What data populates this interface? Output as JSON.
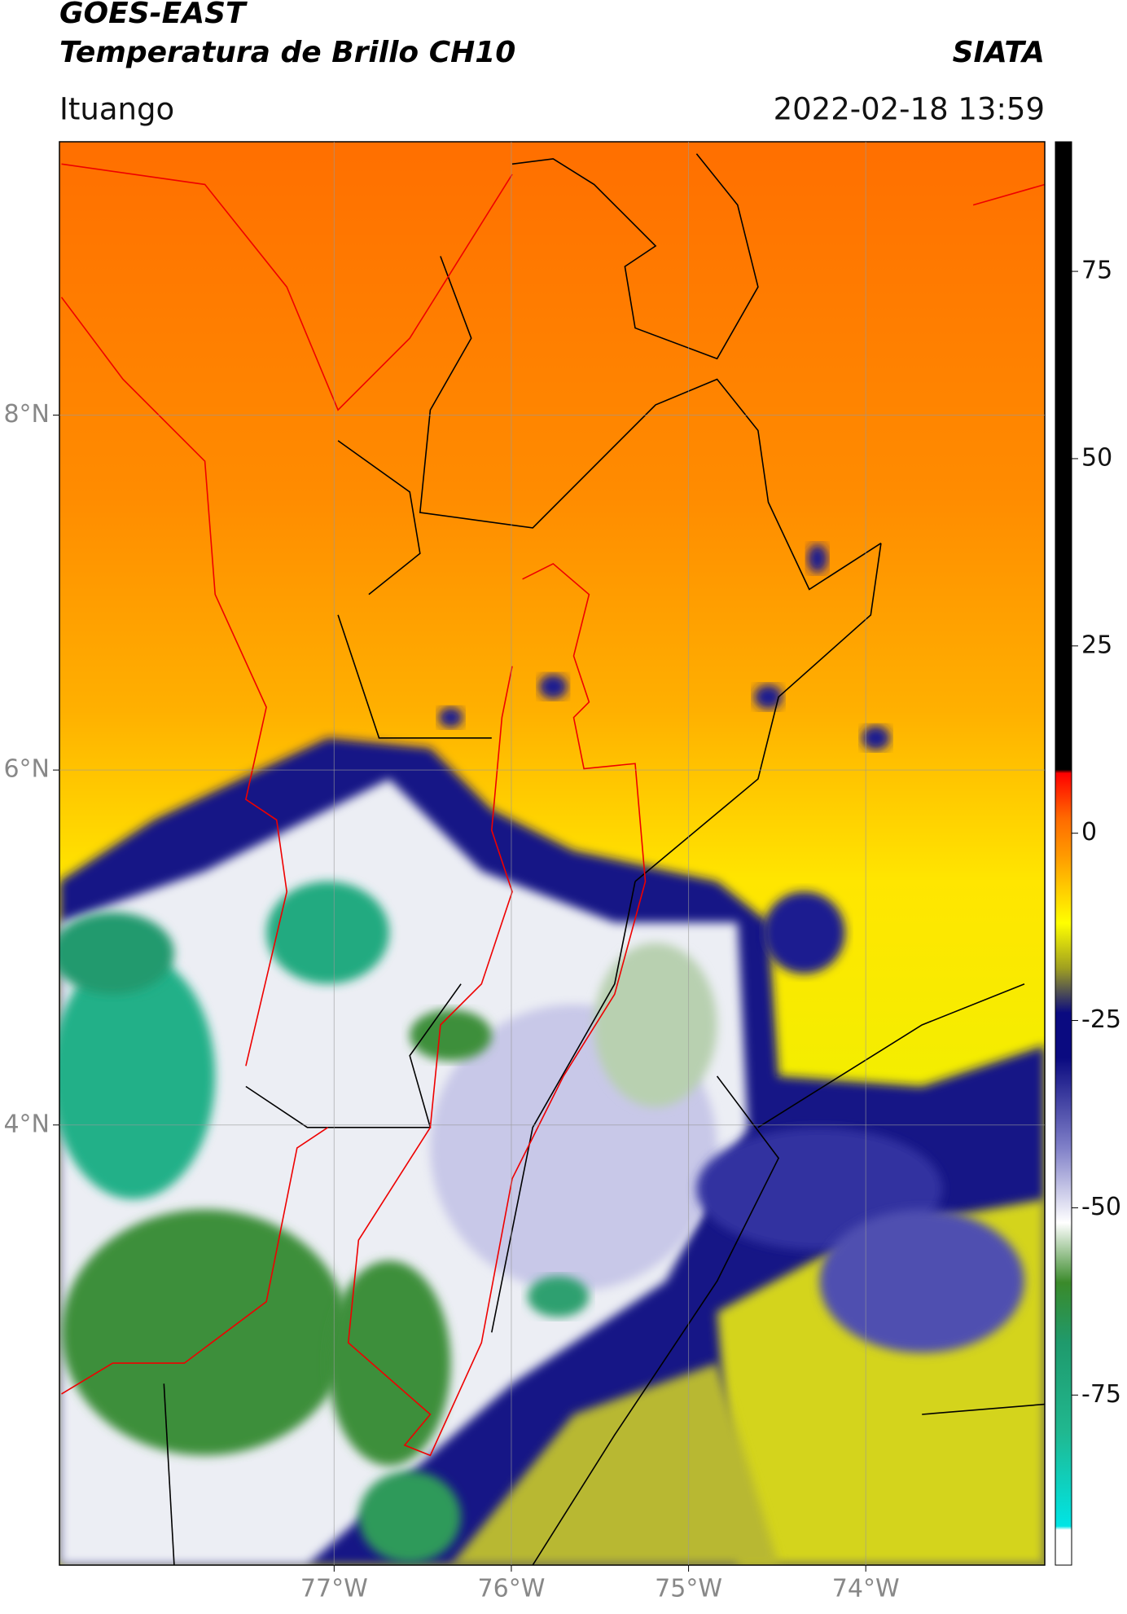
{
  "chart_data": {
    "type": "map",
    "title": "GOES-EAST",
    "subtitle": "Temperatura de Brillo CH10",
    "source": "SIATA",
    "location": "Ituango",
    "timestamp": "2022-02-18 13:59",
    "xlim": [
      -78.55,
      -72.99
    ],
    "ylim": [
      1.52,
      9.54
    ],
    "xticks": [
      {
        "value": -77,
        "label": "77°W"
      },
      {
        "value": -76,
        "label": "76°W"
      },
      {
        "value": -75,
        "label": "75°W"
      },
      {
        "value": -74,
        "label": "74°W"
      }
    ],
    "yticks": [
      {
        "value": 8,
        "label": "8°N"
      },
      {
        "value": 6,
        "label": "6°N"
      },
      {
        "value": 4,
        "label": "4°N"
      }
    ],
    "grid": true,
    "colorbar": {
      "lim": [
        -97.7,
        92.3
      ],
      "ticks": [
        75,
        50,
        25,
        0,
        -25,
        -50,
        -75
      ],
      "colorscale": [
        {
          "value": -97.7,
          "color": "#ffffff"
        },
        {
          "value": -93,
          "color": "#ffffff"
        },
        {
          "value": -92.5,
          "color": "#00e5e5"
        },
        {
          "value": -80,
          "color": "#20b890"
        },
        {
          "value": -68,
          "color": "#1f9a6c"
        },
        {
          "value": -60,
          "color": "#3a8a2a"
        },
        {
          "value": -52,
          "color": "#ffffff"
        },
        {
          "value": -42,
          "color": "#8080c8"
        },
        {
          "value": -30,
          "color": "#0a0a80"
        },
        {
          "value": -24,
          "color": "#0a0a80"
        },
        {
          "value": -18,
          "color": "#a0a020"
        },
        {
          "value": -12,
          "color": "#ffff00"
        },
        {
          "value": -3,
          "color": "#ff9a00"
        },
        {
          "value": 2,
          "color": "#ff6a00"
        },
        {
          "value": 8,
          "color": "#ff0000"
        },
        {
          "value": 8.5,
          "color": "#000000"
        },
        {
          "value": 92.3,
          "color": "#000000"
        }
      ]
    }
  }
}
